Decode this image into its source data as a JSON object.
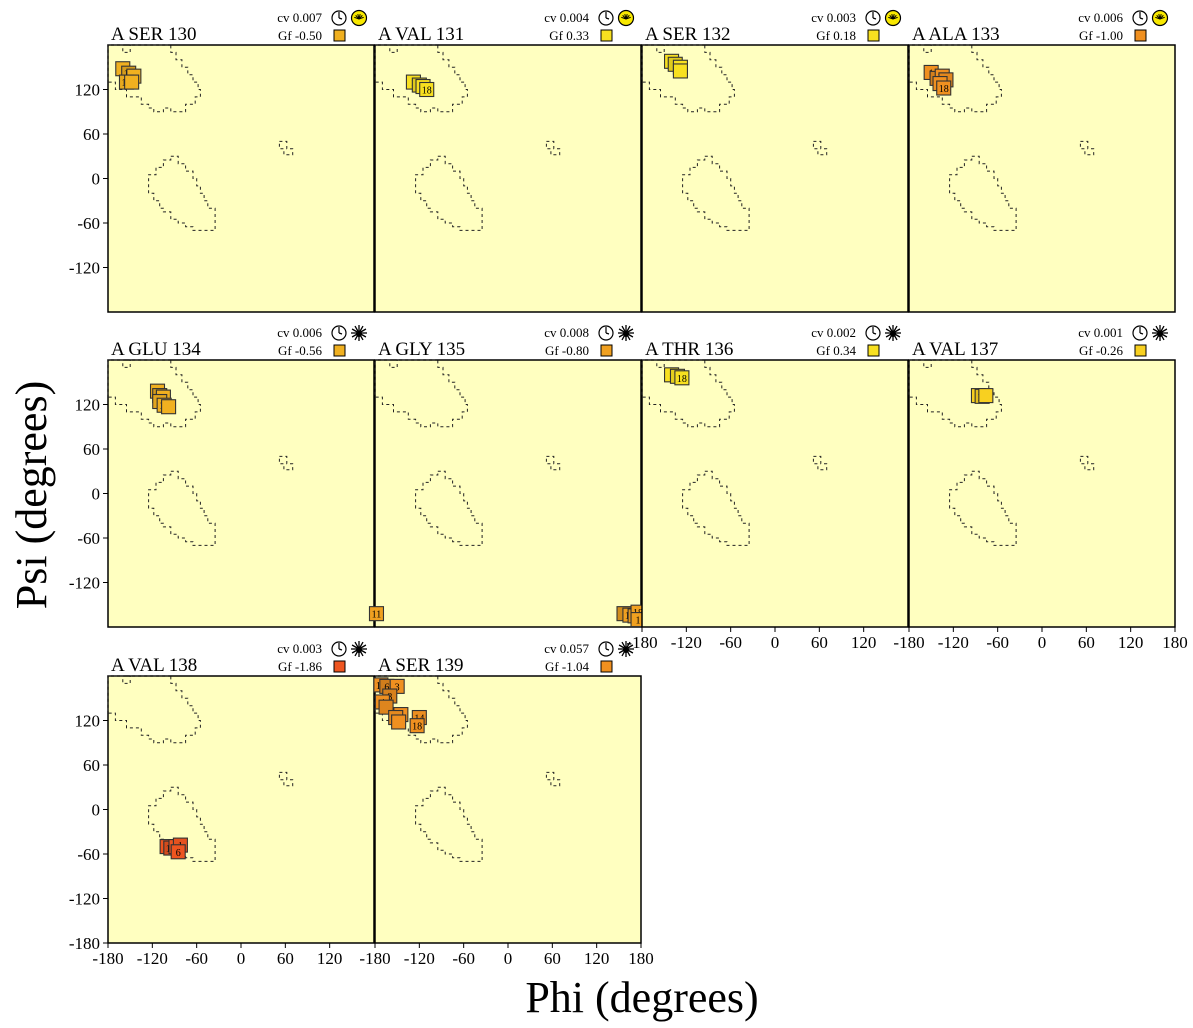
{
  "figure": {
    "xlabel": "Phi (degrees)",
    "ylabel": "Psi (degrees)",
    "x_ticks": [
      "-180",
      "-120",
      "-60",
      "0",
      "60",
      "120",
      "180"
    ],
    "y_ticks": [
      "-180",
      "-120",
      "-60",
      "0",
      "60",
      "120"
    ]
  },
  "colors": {
    "plot_background": "#ffffc0",
    "gf_low": "#ee5522",
    "gf_mid": "#f0a030",
    "gf_high": "#f8e020",
    "marker_stroke": "#333333"
  },
  "chart_data": {
    "type": "scatter",
    "xlim": [
      -180,
      180
    ],
    "ylim": [
      -180,
      180
    ],
    "region_outline": "dashed",
    "panels": [
      {
        "title": "A SER 130",
        "cv": "cv 0.007",
        "gf": "Gf -0.50",
        "gf_color": "#f0b020",
        "clock": "clock",
        "spider": "spider-yellow",
        "points": [
          {
            "phi": -160,
            "psi": 148,
            "label": ""
          },
          {
            "phi": -152,
            "psi": 142,
            "label": "17"
          },
          {
            "phi": -145,
            "psi": 138,
            "label": ""
          },
          {
            "phi": -155,
            "psi": 130,
            "label": "18"
          },
          {
            "phi": -148,
            "psi": 130,
            "label": ""
          }
        ]
      },
      {
        "title": "A VAL 131",
        "cv": "cv 0.004",
        "gf": "Gf 0.33",
        "gf_color": "#f8e020",
        "clock": "clock",
        "spider": "spider-yellow",
        "points": [
          {
            "phi": -128,
            "psi": 130,
            "label": "1"
          },
          {
            "phi": -120,
            "psi": 126,
            "label": ""
          },
          {
            "phi": -115,
            "psi": 124,
            "label": ""
          },
          {
            "phi": -110,
            "psi": 120,
            "label": "18"
          }
        ]
      },
      {
        "title": "A SER 132",
        "cv": "cv 0.003",
        "gf": "Gf 0.18",
        "gf_color": "#f8e020",
        "clock": "clock",
        "spider": "spider-yellow",
        "points": [
          {
            "phi": -140,
            "psi": 158,
            "label": "1"
          },
          {
            "phi": -135,
            "psi": 154,
            "label": ""
          },
          {
            "phi": -128,
            "psi": 150,
            "label": "18"
          },
          {
            "phi": -128,
            "psi": 145,
            "label": ""
          }
        ]
      },
      {
        "title": "A ALA 133",
        "cv": "cv 0.006",
        "gf": "Gf -1.00",
        "gf_color": "#f09020",
        "clock": "clock",
        "spider": "spider-yellow",
        "points": [
          {
            "phi": -150,
            "psi": 143,
            "label": "1"
          },
          {
            "phi": -142,
            "psi": 135,
            "label": ""
          },
          {
            "phi": -135,
            "psi": 138,
            "label": "17"
          },
          {
            "phi": -130,
            "psi": 133,
            "label": "1"
          },
          {
            "phi": -138,
            "psi": 128,
            "label": ""
          },
          {
            "phi": -133,
            "psi": 122,
            "label": "18"
          }
        ]
      },
      {
        "title": "A GLU 134",
        "cv": "cv 0.006",
        "gf": "Gf -0.56",
        "gf_color": "#f0b020",
        "clock": "clock",
        "spider": "spider-black",
        "points": [
          {
            "phi": -113,
            "psi": 138,
            "label": ""
          },
          {
            "phi": -110,
            "psi": 132,
            "label": "17"
          },
          {
            "phi": -105,
            "psi": 130,
            "label": ""
          },
          {
            "phi": -110,
            "psi": 124,
            "label": ""
          },
          {
            "phi": -104,
            "psi": 119,
            "label": "18"
          },
          {
            "phi": -98,
            "psi": 117,
            "label": ""
          }
        ]
      },
      {
        "title": "A GLY 135",
        "cv": "cv 0.008",
        "gf": "Gf -0.80",
        "gf_color": "#f0a020",
        "clock": "clock",
        "spider": "spider-black",
        "points": [
          {
            "phi": -178,
            "psi": -162,
            "label": "11"
          },
          {
            "phi": 157,
            "psi": -162,
            "label": ""
          },
          {
            "phi": 165,
            "psi": -164,
            "label": "17"
          },
          {
            "phi": 172,
            "psi": -165,
            "label": ""
          },
          {
            "phi": 176,
            "psi": -160,
            "label": "18"
          },
          {
            "phi": 176,
            "psi": -170,
            "label": "1"
          }
        ]
      },
      {
        "title": "A THR 136",
        "cv": "cv 0.002",
        "gf": "Gf 0.34",
        "gf_color": "#f8e020",
        "clock": "clock",
        "spider": "spider-black",
        "points": [
          {
            "phi": -140,
            "psi": 160,
            "label": "1"
          },
          {
            "phi": -132,
            "psi": 158,
            "label": ""
          },
          {
            "phi": -126,
            "psi": 156,
            "label": "18"
          }
        ]
      },
      {
        "title": "A VAL 137",
        "cv": "cv 0.001",
        "gf": "Gf -0.26",
        "gf_color": "#f8d020",
        "clock": "clock",
        "spider": "spider-black",
        "points": [
          {
            "phi": -86,
            "psi": 132,
            "label": ""
          },
          {
            "phi": -81,
            "psi": 131,
            "label": "18"
          },
          {
            "phi": -76,
            "psi": 132,
            "label": ""
          }
        ]
      },
      {
        "title": "A VAL 138",
        "cv": "cv 0.003",
        "gf": "Gf -1.86",
        "gf_color": "#ee5520",
        "clock": "clock",
        "spider": "spider-black",
        "points": [
          {
            "phi": -100,
            "psi": -50,
            "label": ""
          },
          {
            "phi": -95,
            "psi": -52,
            "label": "18"
          },
          {
            "phi": -88,
            "psi": -50,
            "label": ""
          },
          {
            "phi": -82,
            "psi": -48,
            "label": "1"
          },
          {
            "phi": -85,
            "psi": -57,
            "label": "6"
          }
        ]
      },
      {
        "title": "A SER 139",
        "cv": "cv 0.057",
        "gf": "Gf -1.04",
        "gf_color": "#f09020",
        "clock": "clock",
        "spider": "spider-black",
        "points": [
          {
            "phi": -172,
            "psi": 168,
            "label": "16"
          },
          {
            "phi": -164,
            "psi": 166,
            "label": "6"
          },
          {
            "phi": -150,
            "psi": 166,
            "label": "3"
          },
          {
            "phi": -160,
            "psi": 153,
            "label": "8"
          },
          {
            "phi": -170,
            "psi": 145,
            "label": "4"
          },
          {
            "phi": -165,
            "psi": 138,
            "label": ""
          },
          {
            "phi": -145,
            "psi": 128,
            "label": ""
          },
          {
            "phi": -152,
            "psi": 124,
            "label": "17"
          },
          {
            "phi": -148,
            "psi": 118,
            "label": ""
          },
          {
            "phi": -120,
            "psi": 124,
            "label": "14"
          },
          {
            "phi": -123,
            "psi": 113,
            "label": "18"
          }
        ]
      }
    ]
  }
}
